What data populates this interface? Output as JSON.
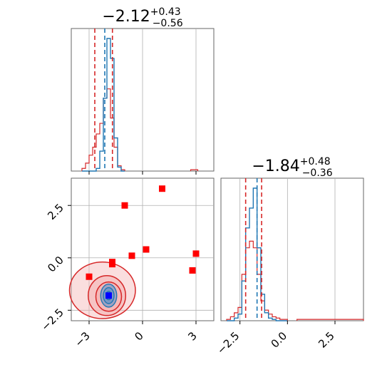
{
  "chart_data": {
    "type": "corner",
    "params": [
      {
        "name": "p1",
        "title": {
          "median": "−2.12",
          "plus": "+0.43",
          "minus": "−0.56"
        },
        "median": -2.12,
        "q_low": -2.68,
        "q_high": -1.69,
        "median_blue": -2.12,
        "xlim": [
          -4.0,
          4.0
        ],
        "xticks": [
          -3,
          0,
          3
        ],
        "xtick_labels": [
          "−3",
          "0",
          "3"
        ]
      },
      {
        "name": "p2",
        "title": {
          "median": "−1.84",
          "plus": "+0.48",
          "minus": "−0.36"
        },
        "median": -1.84,
        "q_low": -2.2,
        "q_high": -1.36,
        "median_blue": -1.6,
        "xlim": [
          -3.5,
          4.0
        ],
        "xticks": [
          -2.5,
          0.0,
          2.5
        ],
        "xtick_labels": [
          "−2.5",
          "0.0",
          "2.5"
        ]
      }
    ],
    "yticks_2d": [
      2.5,
      0.0,
      -2.5
    ],
    "ytick_labels_2d": [
      "2.5",
      "0.0",
      "−2.5"
    ],
    "ylim_2d": [
      -3.0,
      3.8
    ],
    "grid": true,
    "hist1": {
      "bins": [
        -3.4,
        -3.2,
        -3.0,
        -2.8,
        -2.6,
        -2.4,
        -2.2,
        -2.0,
        -1.8,
        -1.6,
        -1.4,
        -1.2,
        -1.0
      ],
      "red": [
        0.02,
        0.06,
        0.12,
        0.18,
        0.28,
        0.36,
        0.55,
        0.62,
        0.4,
        0.18,
        0.04,
        0.01
      ],
      "blue": [
        0.0,
        0.0,
        0.0,
        0.0,
        0.02,
        0.15,
        0.55,
        1.0,
        0.85,
        0.25,
        0.03,
        0.0
      ],
      "red_tail_x": [
        2.7,
        3.1
      ],
      "red_tail_h": 0.01
    },
    "hist2": {
      "bins": [
        -3.2,
        -3.0,
        -2.8,
        -2.6,
        -2.4,
        -2.2,
        -2.0,
        -1.8,
        -1.6,
        -1.4,
        -1.2,
        -1.0,
        -0.8,
        -0.6,
        -0.4,
        -0.2,
        0.0
      ],
      "red": [
        0.01,
        0.03,
        0.06,
        0.1,
        0.35,
        0.55,
        0.6,
        0.55,
        0.35,
        0.15,
        0.08,
        0.05,
        0.03,
        0.02,
        0.01,
        0.01
      ],
      "blue": [
        0.0,
        0.0,
        0.02,
        0.05,
        0.3,
        0.7,
        0.85,
        1.0,
        0.55,
        0.2,
        0.06,
        0.02,
        0.01,
        0.0,
        0.0,
        0.0
      ],
      "red_tail_x": [
        0.5,
        4.0
      ],
      "red_tail_h": 0.01
    },
    "scatter_red_squares": [
      {
        "x": -1.0,
        "y": 2.5
      },
      {
        "x": 1.1,
        "y": 3.3
      },
      {
        "x": -1.7,
        "y": -0.2
      },
      {
        "x": -1.7,
        "y": -0.3
      },
      {
        "x": -0.6,
        "y": 0.1
      },
      {
        "x": 0.2,
        "y": 0.4
      },
      {
        "x": -3.0,
        "y": -0.9
      },
      {
        "x": 2.8,
        "y": -0.6
      },
      {
        "x": 3.0,
        "y": 0.2
      }
    ],
    "blue_square": {
      "x": -1.9,
      "y": -1.8
    },
    "contours_red": [
      {
        "cx": -2.25,
        "cy": -1.55,
        "rx": 1.85,
        "ry": 1.35
      },
      {
        "cx": -2.0,
        "cy": -1.8,
        "rx": 1.05,
        "ry": 0.95
      },
      {
        "cx": -1.9,
        "cy": -1.85,
        "rx": 0.72,
        "ry": 0.7
      }
    ],
    "contours_blue": [
      {
        "cx": -1.9,
        "cy": -1.8,
        "rx": 0.45,
        "ry": 0.55
      },
      {
        "cx": -1.9,
        "cy": -1.8,
        "rx": 0.3,
        "ry": 0.38
      },
      {
        "cx": -1.9,
        "cy": -1.8,
        "rx": 0.15,
        "ry": 0.2
      }
    ],
    "colors": {
      "red": "#d62728",
      "blue": "#1f77b4",
      "fill_red": "#f4b6b6",
      "marker_red": "#ff0000",
      "marker_blue": "#0000ff",
      "grid": "#b0b0b0"
    }
  }
}
